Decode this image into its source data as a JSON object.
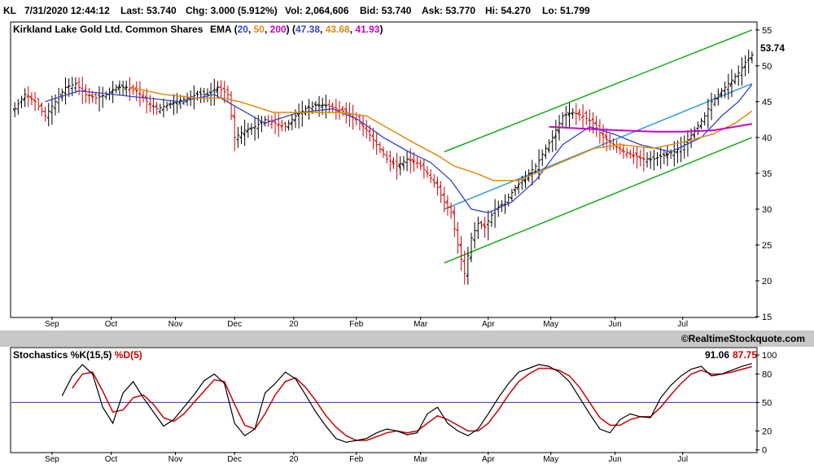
{
  "header": {
    "symbol": "KL",
    "datetime": "7/31/2020 12:44:12",
    "last": "Last: 53.740",
    "chg": "Chg: 3.000 (5.912%)",
    "vol": "Vol: 2,064,606",
    "bid": "Bid: 53.740",
    "ask": "Ask: 53.770",
    "hi": "Hi: 54.270",
    "lo": "Lo: 51.799"
  },
  "colors": {
    "up_bar": "#000000",
    "down_bar": "#cc0000",
    "ema20": "#3344cc",
    "ema50": "#e08a10",
    "ema200": "#cc00cc",
    "channel": "#1aaa1a",
    "trend": "#3399dd",
    "stoch_k": "#000000",
    "stoch_d": "#cc0000",
    "midline": "#3333aa",
    "separator": "#c8c8c8"
  },
  "legend": {
    "company": "Kirkland Lake Gold Ltd. Common Shares",
    "ema_label": "EMA",
    "ema20_param": "20",
    "ema50_param": "50",
    "ema200_param": "200",
    "ema20_val": "47.38",
    "ema50_val": "43.68",
    "ema200_val": "41.93",
    "last_label": "53.74"
  },
  "watermark": "©RealtimeStockquote.com",
  "stoch_legend": {
    "k_label": "Stochastics %K(15,5)",
    "d_label": "%D(5)",
    "k_val": "91.06",
    "d_val": "87.75"
  },
  "chart_data": [
    {
      "type": "candlestick",
      "title": "Kirkland Lake Gold Ltd. Common Shares",
      "y_ticks": [
        15,
        20,
        25,
        30,
        35,
        40,
        45,
        50,
        55
      ],
      "ylim": [
        15,
        56
      ],
      "x_tick_labels": [
        "Sep",
        "Oct",
        "Nov",
        "Dec",
        "20",
        "Feb",
        "Mar",
        "Apr",
        "May",
        "Jun",
        "Jul"
      ],
      "x_tick_days": [
        24,
        59,
        97,
        132,
        167,
        204,
        242,
        282,
        319,
        357,
        397
      ],
      "x_range_days": [
        0,
        440
      ],
      "price_points": [
        [
          2,
          44
        ],
        [
          8,
          46
        ],
        [
          14,
          45
        ],
        [
          20,
          43
        ],
        [
          26,
          45
        ],
        [
          32,
          47
        ],
        [
          38,
          47.5
        ],
        [
          44,
          46
        ],
        [
          50,
          45.5
        ],
        [
          56,
          46
        ],
        [
          62,
          47
        ],
        [
          68,
          47
        ],
        [
          74,
          46.5
        ],
        [
          80,
          45
        ],
        [
          86,
          44
        ],
        [
          92,
          44.5
        ],
        [
          98,
          45
        ],
        [
          104,
          45.5
        ],
        [
          110,
          46
        ],
        [
          116,
          46
        ],
        [
          122,
          47
        ],
        [
          128,
          46
        ],
        [
          132,
          40
        ],
        [
          138,
          41
        ],
        [
          144,
          41.5
        ],
        [
          150,
          42.5
        ],
        [
          156,
          42
        ],
        [
          162,
          41.5
        ],
        [
          168,
          43
        ],
        [
          174,
          44
        ],
        [
          180,
          44.5
        ],
        [
          186,
          44.5
        ],
        [
          192,
          44
        ],
        [
          198,
          43.5
        ],
        [
          204,
          42.5
        ],
        [
          210,
          41
        ],
        [
          216,
          39
        ],
        [
          222,
          37
        ],
        [
          228,
          36
        ],
        [
          234,
          37
        ],
        [
          240,
          36.5
        ],
        [
          246,
          35
        ],
        [
          252,
          33
        ],
        [
          256,
          31
        ],
        [
          260,
          29.5
        ],
        [
          264,
          25
        ],
        [
          268,
          21
        ],
        [
          272,
          26
        ],
        [
          276,
          28
        ],
        [
          280,
          27.5
        ],
        [
          286,
          30
        ],
        [
          292,
          31
        ],
        [
          298,
          33
        ],
        [
          304,
          34.5
        ],
        [
          310,
          36
        ],
        [
          316,
          38.5
        ],
        [
          320,
          40
        ],
        [
          326,
          43
        ],
        [
          332,
          43.5
        ],
        [
          338,
          43
        ],
        [
          344,
          42
        ],
        [
          350,
          40
        ],
        [
          356,
          39
        ],
        [
          362,
          38
        ],
        [
          368,
          37.5
        ],
        [
          374,
          37
        ],
        [
          380,
          37
        ],
        [
          386,
          37.5
        ],
        [
          392,
          38
        ],
        [
          398,
          39
        ],
        [
          404,
          41
        ],
        [
          410,
          43
        ],
        [
          414,
          45
        ],
        [
          418,
          46
        ],
        [
          422,
          47
        ],
        [
          426,
          48
        ],
        [
          430,
          49
        ],
        [
          434,
          50.5
        ],
        [
          438,
          51.5
        ]
      ],
      "ema20": [
        [
          20,
          45
        ],
        [
          40,
          46.5
        ],
        [
          60,
          46
        ],
        [
          80,
          45.5
        ],
        [
          100,
          45
        ],
        [
          120,
          46
        ],
        [
          135,
          44
        ],
        [
          150,
          42
        ],
        [
          170,
          43.5
        ],
        [
          190,
          44
        ],
        [
          205,
          42.5
        ],
        [
          220,
          40
        ],
        [
          235,
          38
        ],
        [
          248,
          36.5
        ],
        [
          260,
          34
        ],
        [
          272,
          30
        ],
        [
          282,
          29.5
        ],
        [
          296,
          31
        ],
        [
          310,
          34
        ],
        [
          326,
          39
        ],
        [
          342,
          41.5
        ],
        [
          356,
          40.5
        ],
        [
          372,
          39
        ],
        [
          390,
          38
        ],
        [
          408,
          40
        ],
        [
          420,
          43
        ],
        [
          430,
          45
        ],
        [
          438,
          47.4
        ]
      ],
      "ema50": [
        [
          70,
          47
        ],
        [
          90,
          46
        ],
        [
          110,
          45.5
        ],
        [
          125,
          45.5
        ],
        [
          135,
          45
        ],
        [
          155,
          43.5
        ],
        [
          175,
          43.5
        ],
        [
          195,
          43.5
        ],
        [
          210,
          43
        ],
        [
          225,
          41
        ],
        [
          240,
          39
        ],
        [
          252,
          37.5
        ],
        [
          262,
          36
        ],
        [
          275,
          35
        ],
        [
          285,
          34
        ],
        [
          300,
          34
        ],
        [
          315,
          35.5
        ],
        [
          330,
          37
        ],
        [
          345,
          38.5
        ],
        [
          360,
          39
        ],
        [
          380,
          38.5
        ],
        [
          400,
          39.5
        ],
        [
          415,
          40.5
        ],
        [
          428,
          42
        ],
        [
          438,
          43.7
        ]
      ],
      "ema200": [
        [
          318,
          41.5
        ],
        [
          340,
          41.2
        ],
        [
          360,
          41
        ],
        [
          380,
          40.8
        ],
        [
          398,
          40.8
        ],
        [
          415,
          41
        ],
        [
          428,
          41.5
        ],
        [
          438,
          41.9
        ]
      ],
      "channel_upper": [
        [
          256,
          38
        ],
        [
          438,
          55
        ]
      ],
      "channel_middle": [
        [
          256,
          30
        ],
        [
          438,
          47.5
        ]
      ],
      "channel_lower": [
        [
          256,
          22.5
        ],
        [
          438,
          40
        ]
      ]
    },
    {
      "type": "line",
      "title": "Stochastics %K(15,5)",
      "y_ticks": [
        0,
        20,
        50,
        80,
        100
      ],
      "ylim": [
        -2,
        107
      ],
      "series": [
        {
          "name": "%K(15,5)",
          "points": [
            [
              30,
              57
            ],
            [
              36,
              78
            ],
            [
              42,
              90
            ],
            [
              48,
              80
            ],
            [
              54,
              45
            ],
            [
              60,
              28
            ],
            [
              66,
              60
            ],
            [
              72,
              72
            ],
            [
              78,
              55
            ],
            [
              84,
              40
            ],
            [
              90,
              25
            ],
            [
              96,
              32
            ],
            [
              102,
              45
            ],
            [
              108,
              58
            ],
            [
              114,
              73
            ],
            [
              120,
              80
            ],
            [
              126,
              70
            ],
            [
              132,
              28
            ],
            [
              138,
              15
            ],
            [
              144,
              22
            ],
            [
              150,
              60
            ],
            [
              156,
              70
            ],
            [
              162,
              82
            ],
            [
              168,
              75
            ],
            [
              174,
              58
            ],
            [
              180,
              40
            ],
            [
              186,
              25
            ],
            [
              192,
              12
            ],
            [
              198,
              8
            ],
            [
              204,
              10
            ],
            [
              210,
              12
            ],
            [
              216,
              18
            ],
            [
              222,
              22
            ],
            [
              228,
              20
            ],
            [
              234,
              16
            ],
            [
              240,
              18
            ],
            [
              246,
              38
            ],
            [
              252,
              45
            ],
            [
              258,
              28
            ],
            [
              264,
              20
            ],
            [
              270,
              15
            ],
            [
              276,
              22
            ],
            [
              282,
              38
            ],
            [
              288,
              55
            ],
            [
              294,
              70
            ],
            [
              300,
              82
            ],
            [
              306,
              86
            ],
            [
              312,
              90
            ],
            [
              318,
              88
            ],
            [
              324,
              82
            ],
            [
              330,
              72
            ],
            [
              336,
              55
            ],
            [
              342,
              38
            ],
            [
              348,
              22
            ],
            [
              354,
              18
            ],
            [
              360,
              32
            ],
            [
              366,
              38
            ],
            [
              372,
              35
            ],
            [
              378,
              34
            ],
            [
              384,
              55
            ],
            [
              390,
              68
            ],
            [
              396,
              78
            ],
            [
              402,
              85
            ],
            [
              408,
              88
            ],
            [
              414,
              78
            ],
            [
              420,
              80
            ],
            [
              426,
              84
            ],
            [
              432,
              88
            ],
            [
              438,
              91
            ]
          ]
        },
        {
          "name": "%D(5)",
          "points": [
            [
              36,
              65
            ],
            [
              42,
              80
            ],
            [
              48,
              82
            ],
            [
              54,
              62
            ],
            [
              60,
              40
            ],
            [
              66,
              42
            ],
            [
              72,
              55
            ],
            [
              78,
              58
            ],
            [
              84,
              48
            ],
            [
              90,
              34
            ],
            [
              96,
              30
            ],
            [
              102,
              38
            ],
            [
              108,
              50
            ],
            [
              114,
              62
            ],
            [
              120,
              74
            ],
            [
              126,
              72
            ],
            [
              132,
              48
            ],
            [
              138,
              26
            ],
            [
              144,
              22
            ],
            [
              150,
              38
            ],
            [
              156,
              58
            ],
            [
              162,
              72
            ],
            [
              168,
              76
            ],
            [
              174,
              66
            ],
            [
              180,
              52
            ],
            [
              186,
              36
            ],
            [
              192,
              24
            ],
            [
              198,
              15
            ],
            [
              204,
              10
            ],
            [
              210,
              10
            ],
            [
              216,
              14
            ],
            [
              222,
              18
            ],
            [
              228,
              20
            ],
            [
              234,
              18
            ],
            [
              240,
              20
            ],
            [
              246,
              28
            ],
            [
              252,
              36
            ],
            [
              258,
              32
            ],
            [
              264,
              26
            ],
            [
              270,
              20
            ],
            [
              276,
              20
            ],
            [
              282,
              28
            ],
            [
              288,
              42
            ],
            [
              294,
              58
            ],
            [
              300,
              72
            ],
            [
              306,
              80
            ],
            [
              312,
              86
            ],
            [
              318,
              86
            ],
            [
              324,
              84
            ],
            [
              330,
              78
            ],
            [
              336,
              66
            ],
            [
              342,
              50
            ],
            [
              348,
              34
            ],
            [
              354,
              26
            ],
            [
              360,
              26
            ],
            [
              366,
              32
            ],
            [
              372,
              35
            ],
            [
              378,
              35
            ],
            [
              384,
              45
            ],
            [
              390,
              58
            ],
            [
              396,
              70
            ],
            [
              402,
              80
            ],
            [
              408,
              84
            ],
            [
              414,
              80
            ],
            [
              420,
              80
            ],
            [
              426,
              82
            ],
            [
              432,
              85
            ],
            [
              438,
              87.75
            ]
          ]
        }
      ],
      "reference_line": 50
    }
  ]
}
